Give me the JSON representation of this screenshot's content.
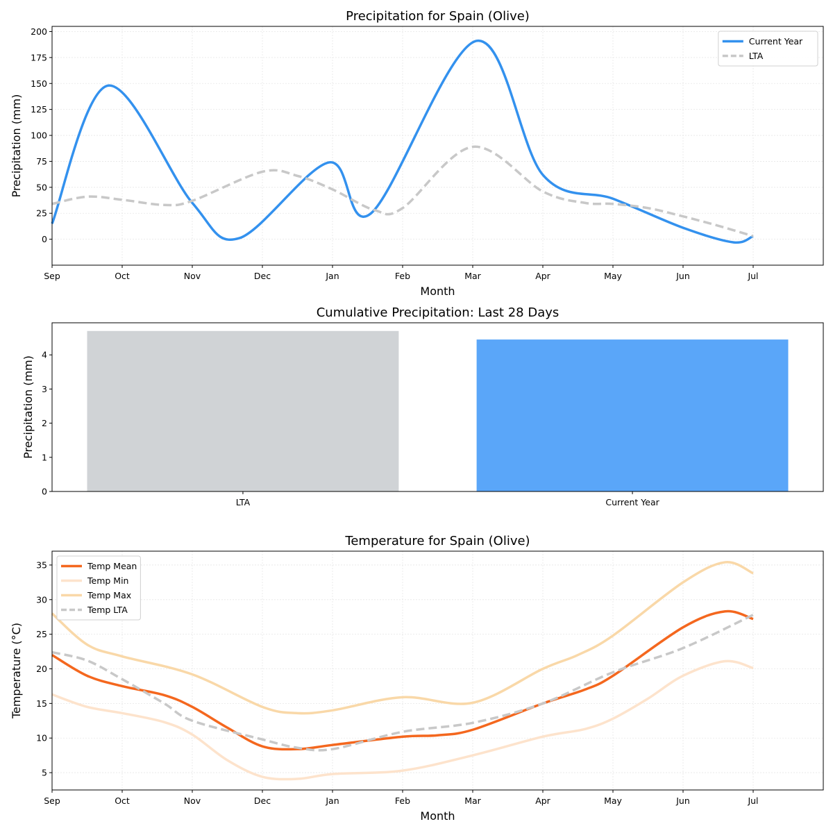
{
  "chart_data": [
    {
      "type": "line",
      "title": "Precipitation for Spain (Olive)",
      "xlabel": "Month",
      "ylabel": "Precipitation (mm)",
      "categories": [
        "Sep",
        "Oct",
        "Nov",
        "Dec",
        "Jan",
        "Feb",
        "Mar",
        "Apr",
        "May",
        "Jun",
        "Jul"
      ],
      "xlim": [
        0,
        11
      ],
      "ylim": [
        -25,
        205
      ],
      "yticks": [
        0,
        25,
        50,
        75,
        100,
        125,
        150,
        175,
        200
      ],
      "grid": true,
      "legend_position": "top-right",
      "series": [
        {
          "name": "Current Year",
          "color": "#3391ee",
          "style": "solid",
          "points": [
            [
              0,
              15
            ],
            [
              0.8,
              148
            ],
            [
              2,
              35
            ],
            [
              2.67,
              1
            ],
            [
              3.95,
              74
            ],
            [
              4.55,
              25
            ],
            [
              6.05,
              191
            ],
            [
              7,
              62
            ],
            [
              8,
              39
            ],
            [
              9,
              11
            ],
            [
              9.72,
              -3
            ],
            [
              10,
              3
            ]
          ]
        },
        {
          "name": "LTA",
          "color": "#c8c8c8",
          "style": "dashed",
          "points": [
            [
              0,
              34
            ],
            [
              0.5,
              41
            ],
            [
              1,
              38
            ],
            [
              1.6,
              33
            ],
            [
              2,
              37
            ],
            [
              3,
              65
            ],
            [
              3.5,
              61
            ],
            [
              4,
              48
            ],
            [
              4.6,
              28
            ],
            [
              5,
              30
            ],
            [
              6,
              89
            ],
            [
              7,
              46
            ],
            [
              7.6,
              35
            ],
            [
              8,
              34
            ],
            [
              8.5,
              30
            ],
            [
              9,
              22
            ],
            [
              9.5,
              13
            ],
            [
              10,
              3
            ]
          ]
        }
      ]
    },
    {
      "type": "bar",
      "title": "Cumulative Precipitation: Last 28 Days",
      "xlabel": "",
      "ylabel": "Precipitation (mm)",
      "categories": [
        "LTA",
        "Current Year"
      ],
      "values": [
        4.7,
        4.45
      ],
      "colors": [
        "#d0d3d6",
        "#5aa6f9"
      ],
      "ylim": [
        0,
        4.94
      ],
      "yticks": [
        0,
        1,
        2,
        3,
        4
      ],
      "grid": false
    },
    {
      "type": "line",
      "title": "Temperature for Spain (Olive)",
      "xlabel": "Month",
      "ylabel": "Temperature (°C)",
      "categories": [
        "Sep",
        "Oct",
        "Nov",
        "Dec",
        "Jan",
        "Feb",
        "Mar",
        "Apr",
        "May",
        "Jun",
        "Jul"
      ],
      "xlim": [
        0,
        11
      ],
      "ylim": [
        2.5,
        37
      ],
      "yticks": [
        5,
        10,
        15,
        20,
        25,
        30,
        35
      ],
      "grid": true,
      "legend_position": "top-left",
      "series": [
        {
          "name": "Temp Mean",
          "color": "#f4671e",
          "style": "solid",
          "points": [
            [
              0,
              22
            ],
            [
              0.5,
              19
            ],
            [
              1,
              17.5
            ],
            [
              1.6,
              16.2
            ],
            [
              2,
              14.5
            ],
            [
              2.5,
              11.5
            ],
            [
              3,
              8.8
            ],
            [
              3.5,
              8.4
            ],
            [
              4,
              9
            ],
            [
              5,
              10.2
            ],
            [
              5.5,
              10.4
            ],
            [
              6,
              11.2
            ],
            [
              7,
              15
            ],
            [
              7.6,
              17
            ],
            [
              8,
              19
            ],
            [
              9,
              26
            ],
            [
              9.6,
              28.3
            ],
            [
              10,
              27.2
            ]
          ]
        },
        {
          "name": "Temp Min",
          "color": "#fde3cc",
          "style": "solid",
          "points": [
            [
              0,
              16.3
            ],
            [
              0.5,
              14.5
            ],
            [
              1,
              13.6
            ],
            [
              1.6,
              12.3
            ],
            [
              2,
              10.5
            ],
            [
              2.5,
              6.8
            ],
            [
              3,
              4.4
            ],
            [
              3.5,
              4.1
            ],
            [
              4,
              4.8
            ],
            [
              5,
              5.3
            ],
            [
              6,
              7.5
            ],
            [
              7,
              10.2
            ],
            [
              7.6,
              11.3
            ],
            [
              8,
              12.8
            ],
            [
              8.5,
              15.7
            ],
            [
              9,
              19
            ],
            [
              9.6,
              21.1
            ],
            [
              10,
              20.1
            ]
          ]
        },
        {
          "name": "Temp Max",
          "color": "#f9d8a8",
          "style": "solid",
          "points": [
            [
              0,
              28
            ],
            [
              0.5,
              23.5
            ],
            [
              1,
              21.8
            ],
            [
              2,
              19.2
            ],
            [
              3,
              14.5
            ],
            [
              3.5,
              13.6
            ],
            [
              4,
              14
            ],
            [
              5,
              15.9
            ],
            [
              6,
              15.1
            ],
            [
              7,
              20
            ],
            [
              7.5,
              22
            ],
            [
              8,
              24.8
            ],
            [
              9,
              32.5
            ],
            [
              9.6,
              35.4
            ],
            [
              10,
              33.8
            ]
          ]
        },
        {
          "name": "Temp LTA",
          "color": "#c8c8c8",
          "style": "dashed",
          "points": [
            [
              0,
              22.4
            ],
            [
              0.5,
              21.2
            ],
            [
              1,
              18.5
            ],
            [
              1.6,
              15
            ],
            [
              2,
              12.5
            ],
            [
              3,
              9.8
            ],
            [
              3.5,
              8.6
            ],
            [
              4,
              8.4
            ],
            [
              5,
              10.9
            ],
            [
              6,
              12.2
            ],
            [
              7,
              15
            ],
            [
              8,
              19.5
            ],
            [
              9,
              23
            ],
            [
              10,
              27.8
            ]
          ]
        }
      ]
    }
  ]
}
